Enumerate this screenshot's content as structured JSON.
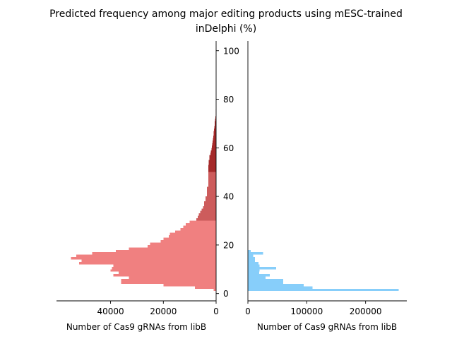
{
  "figure": {
    "title_line1": "Predicted frequency among major editing products using mESC-trained",
    "title_line2": "inDelphi (%)"
  },
  "chart_data": [
    {
      "type": "bar",
      "orientation": "horizontal",
      "direction": "leftward",
      "xlabel": "Number of Cas9 gRNAs from libB",
      "xlim": [
        0,
        60500
      ],
      "x_ticks": [
        0,
        20000,
        40000
      ],
      "x_ticklabels": [
        "0",
        "20000",
        "40000"
      ],
      "ylim": [
        -3,
        104
      ],
      "y_ticks": [
        0,
        20,
        40,
        60,
        80,
        100
      ],
      "y_ticklabels": [
        "0",
        "20",
        "40",
        "60",
        "80",
        "100"
      ],
      "bin_width": 1,
      "series": [
        {
          "color": "#f08080",
          "bins": [
            {
              "start": 1,
              "value": 1000
            },
            {
              "start": 2,
              "value": 8000
            },
            {
              "start": 3,
              "value": 20000
            },
            {
              "start": 4,
              "value": 36000
            },
            {
              "start": 5,
              "value": 36000
            },
            {
              "start": 6,
              "value": 33000
            },
            {
              "start": 7,
              "value": 39000
            },
            {
              "start": 8,
              "value": 37000
            },
            {
              "start": 9,
              "value": 40000
            },
            {
              "start": 10,
              "value": 39500
            },
            {
              "start": 11,
              "value": 39000
            },
            {
              "start": 12,
              "value": 52000
            },
            {
              "start": 13,
              "value": 51000
            },
            {
              "start": 14,
              "value": 55000
            },
            {
              "start": 15,
              "value": 53000
            },
            {
              "start": 16,
              "value": 47000
            },
            {
              "start": 17,
              "value": 38000
            },
            {
              "start": 18,
              "value": 33000
            },
            {
              "start": 19,
              "value": 26000
            },
            {
              "start": 20,
              "value": 25000
            },
            {
              "start": 21,
              "value": 21000
            },
            {
              "start": 22,
              "value": 20000
            },
            {
              "start": 23,
              "value": 18000
            },
            {
              "start": 24,
              "value": 17500
            },
            {
              "start": 25,
              "value": 15500
            },
            {
              "start": 26,
              "value": 13500
            },
            {
              "start": 27,
              "value": 12500
            },
            {
              "start": 28,
              "value": 11500
            },
            {
              "start": 29,
              "value": 10000
            }
          ]
        },
        {
          "color": "#cd5c5c",
          "bins": [
            {
              "start": 30,
              "value": 7500
            },
            {
              "start": 31,
              "value": 7000
            },
            {
              "start": 32,
              "value": 6500
            },
            {
              "start": 33,
              "value": 6000
            },
            {
              "start": 34,
              "value": 5500
            },
            {
              "start": 35,
              "value": 5000
            },
            {
              "start": 36,
              "value": 4500
            },
            {
              "start": 37,
              "value": 4500
            },
            {
              "start": 38,
              "value": 4000
            },
            {
              "start": 39,
              "value": 4000
            },
            {
              "start": 40,
              "value": 3500
            },
            {
              "start": 41,
              "value": 3500
            },
            {
              "start": 42,
              "value": 3500
            },
            {
              "start": 43,
              "value": 3500
            },
            {
              "start": 44,
              "value": 3000
            },
            {
              "start": 45,
              "value": 3000
            },
            {
              "start": 46,
              "value": 3000
            },
            {
              "start": 47,
              "value": 3000
            },
            {
              "start": 48,
              "value": 3000
            },
            {
              "start": 49,
              "value": 3000
            }
          ]
        },
        {
          "color": "#a52a2a",
          "bins": [
            {
              "start": 50,
              "value": 3000
            },
            {
              "start": 51,
              "value": 3000
            },
            {
              "start": 52,
              "value": 3000
            },
            {
              "start": 53,
              "value": 2800
            },
            {
              "start": 54,
              "value": 2800
            },
            {
              "start": 55,
              "value": 2500
            },
            {
              "start": 56,
              "value": 2500
            },
            {
              "start": 57,
              "value": 2200
            },
            {
              "start": 58,
              "value": 2000
            },
            {
              "start": 59,
              "value": 1800
            },
            {
              "start": 60,
              "value": 1600
            },
            {
              "start": 61,
              "value": 1500
            },
            {
              "start": 62,
              "value": 1400
            },
            {
              "start": 63,
              "value": 1200
            },
            {
              "start": 64,
              "value": 1100
            },
            {
              "start": 65,
              "value": 1000
            },
            {
              "start": 66,
              "value": 900
            },
            {
              "start": 67,
              "value": 800
            },
            {
              "start": 68,
              "value": 700
            },
            {
              "start": 69,
              "value": 600
            },
            {
              "start": 70,
              "value": 500
            },
            {
              "start": 71,
              "value": 400
            },
            {
              "start": 72,
              "value": 300
            },
            {
              "start": 73,
              "value": 200
            },
            {
              "start": 74,
              "value": 150
            },
            {
              "start": 75,
              "value": 100
            }
          ]
        }
      ]
    },
    {
      "type": "bar",
      "orientation": "horizontal",
      "direction": "rightward",
      "xlabel": "Number of Cas9 gRNAs from libB",
      "xlim": [
        0,
        270000
      ],
      "x_ticks": [
        0,
        100000,
        200000
      ],
      "x_ticklabels": [
        "0",
        "100000",
        "200000"
      ],
      "ylim": [
        -3,
        104
      ],
      "bin_width": 1,
      "series": [
        {
          "color": "#87cefa",
          "bins": [
            {
              "start": 1,
              "value": 256000
            },
            {
              "start": 2,
              "value": 110000
            },
            {
              "start": 3,
              "value": 95000
            },
            {
              "start": 4,
              "value": 60000
            },
            {
              "start": 5,
              "value": 60000
            },
            {
              "start": 6,
              "value": 30000
            },
            {
              "start": 7,
              "value": 37000
            },
            {
              "start": 8,
              "value": 19000
            },
            {
              "start": 9,
              "value": 20000
            },
            {
              "start": 10,
              "value": 48000
            },
            {
              "start": 11,
              "value": 20000
            },
            {
              "start": 12,
              "value": 18000
            },
            {
              "start": 13,
              "value": 12000
            },
            {
              "start": 14,
              "value": 12000
            },
            {
              "start": 15,
              "value": 9000
            },
            {
              "start": 16,
              "value": 26000
            },
            {
              "start": 17,
              "value": 5000
            }
          ]
        }
      ]
    }
  ]
}
